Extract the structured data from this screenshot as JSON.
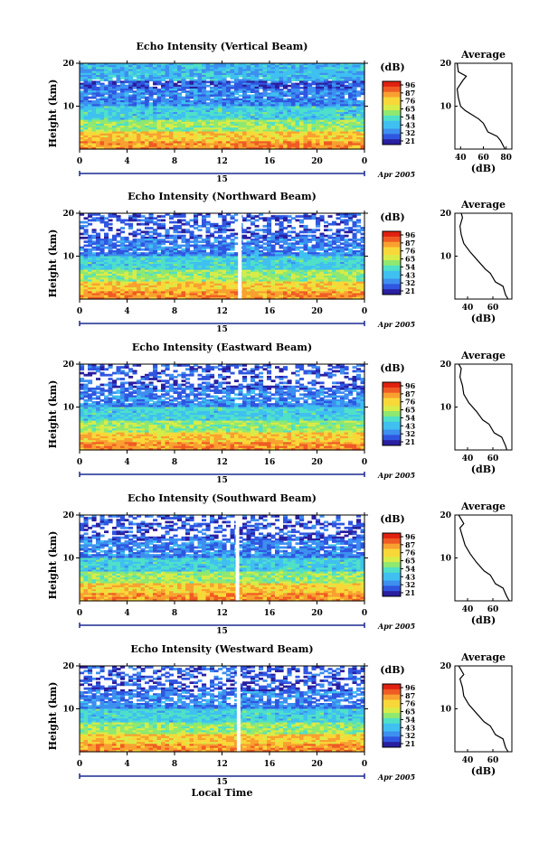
{
  "chart_data": [
    {
      "type": "heatmap",
      "title": "Echo Intensity (Vertical Beam)",
      "ylabel": "Height (km)",
      "xlim": [
        0,
        24
      ],
      "ylim": [
        0,
        20
      ],
      "x_ticks": [
        "0",
        "4",
        "8",
        "12",
        "16",
        "20",
        "0"
      ],
      "y_ticks": [
        "20",
        "10"
      ],
      "date_tick": "15",
      "date_label": "Apr 2005",
      "colorbar": {
        "unit": "(dB)",
        "levels": [
          "96",
          "87",
          "76",
          "65",
          "54",
          "43",
          "32",
          "21"
        ]
      },
      "profile": {
        "title": "Average",
        "xlabel": "(dB)",
        "x_ticks": [
          "40",
          "60",
          "80"
        ],
        "xlim": [
          35,
          85
        ],
        "y_ticks": [
          "20",
          "10"
        ],
        "points": [
          [
            79,
            0
          ],
          [
            75,
            2
          ],
          [
            72,
            3
          ],
          [
            64,
            4
          ],
          [
            60,
            6
          ],
          [
            56,
            7
          ],
          [
            50,
            8
          ],
          [
            44,
            9
          ],
          [
            40,
            10
          ],
          [
            38,
            12
          ],
          [
            37,
            14
          ],
          [
            42,
            16
          ],
          [
            45,
            17
          ],
          [
            38,
            18
          ],
          [
            37,
            20
          ]
        ]
      },
      "gaps": []
    },
    {
      "type": "heatmap",
      "title": "Echo Intensity (Northward Beam)",
      "ylabel": "Height (km)",
      "xlim": [
        0,
        24
      ],
      "ylim": [
        0,
        20
      ],
      "x_ticks": [
        "0",
        "4",
        "8",
        "12",
        "16",
        "20",
        "0"
      ],
      "y_ticks": [
        "20",
        "10"
      ],
      "date_tick": "15",
      "date_label": "Apr 2005",
      "colorbar": {
        "unit": "(dB)",
        "levels": [
          "96",
          "87",
          "76",
          "65",
          "54",
          "43",
          "32",
          "21"
        ]
      },
      "profile": {
        "title": "Average",
        "xlabel": "(dB)",
        "x_ticks": [
          "40",
          "60"
        ],
        "xlim": [
          30,
          75
        ],
        "y_ticks": [
          "20",
          "10"
        ],
        "points": [
          [
            72,
            0
          ],
          [
            70,
            1
          ],
          [
            68,
            3
          ],
          [
            62,
            4
          ],
          [
            58,
            6
          ],
          [
            54,
            7
          ],
          [
            48,
            9
          ],
          [
            42,
            11
          ],
          [
            37,
            13
          ],
          [
            35,
            15
          ],
          [
            34,
            17
          ],
          [
            36,
            19
          ],
          [
            35,
            20
          ]
        ]
      },
      "gaps": [
        13.5
      ]
    },
    {
      "type": "heatmap",
      "title": "Echo Intensity (Eastward Beam)",
      "ylabel": "Height (km)",
      "xlim": [
        0,
        24
      ],
      "ylim": [
        0,
        20
      ],
      "x_ticks": [
        "0",
        "4",
        "8",
        "12",
        "16",
        "20",
        "0"
      ],
      "y_ticks": [
        "20",
        "10"
      ],
      "date_tick": "15",
      "date_label": "Apr 2005",
      "colorbar": {
        "unit": "(dB)",
        "levels": [
          "96",
          "87",
          "76",
          "65",
          "54",
          "43",
          "32",
          "21"
        ]
      },
      "profile": {
        "title": "Average",
        "xlabel": "(dB)",
        "x_ticks": [
          "40",
          "60"
        ],
        "xlim": [
          30,
          75
        ],
        "y_ticks": [
          "20",
          "10"
        ],
        "points": [
          [
            71,
            0
          ],
          [
            70,
            1
          ],
          [
            67,
            3
          ],
          [
            61,
            4
          ],
          [
            57,
            6
          ],
          [
            52,
            7
          ],
          [
            47,
            9
          ],
          [
            41,
            11
          ],
          [
            37,
            13
          ],
          [
            36,
            15
          ],
          [
            34,
            17
          ],
          [
            35,
            19
          ],
          [
            33,
            20
          ]
        ]
      },
      "gaps": []
    },
    {
      "type": "heatmap",
      "title": "Echo Intensity (Southward Beam)",
      "ylabel": "Height (km)",
      "xlim": [
        0,
        24
      ],
      "ylim": [
        0,
        20
      ],
      "x_ticks": [
        "0",
        "4",
        "8",
        "12",
        "16",
        "20",
        "0"
      ],
      "y_ticks": [
        "20",
        "10"
      ],
      "date_tick": "15",
      "date_label": "Apr 2005",
      "colorbar": {
        "unit": "(dB)",
        "levels": [
          "96",
          "87",
          "76",
          "65",
          "54",
          "43",
          "32",
          "21"
        ]
      },
      "profile": {
        "title": "Average",
        "xlabel": "(dB)",
        "x_ticks": [
          "40",
          "60"
        ],
        "xlim": [
          30,
          75
        ],
        "y_ticks": [
          "20",
          "10"
        ],
        "points": [
          [
            73,
            0
          ],
          [
            71,
            1
          ],
          [
            68,
            3
          ],
          [
            62,
            4
          ],
          [
            58,
            6
          ],
          [
            53,
            7
          ],
          [
            47,
            9
          ],
          [
            42,
            11
          ],
          [
            38,
            13
          ],
          [
            36,
            15
          ],
          [
            34,
            17
          ],
          [
            37,
            18
          ],
          [
            33,
            20
          ]
        ]
      },
      "gaps": [
        13.3
      ]
    },
    {
      "type": "heatmap",
      "title": "Echo Intensity (Westward Beam)",
      "ylabel": "Height (km)",
      "xlim": [
        0,
        24
      ],
      "ylim": [
        0,
        20
      ],
      "x_ticks": [
        "0",
        "4",
        "8",
        "12",
        "16",
        "20",
        "0"
      ],
      "y_ticks": [
        "20",
        "10"
      ],
      "date_tick": "15",
      "date_label": "Apr 2005",
      "xlabel": "Local Time",
      "colorbar": {
        "unit": "(dB)",
        "levels": [
          "96",
          "87",
          "76",
          "65",
          "54",
          "43",
          "32",
          "21"
        ]
      },
      "profile": {
        "title": "Average",
        "xlabel": "(dB)",
        "x_ticks": [
          "40",
          "60"
        ],
        "xlim": [
          30,
          75
        ],
        "y_ticks": [
          "20",
          "10"
        ],
        "points": [
          [
            72,
            0
          ],
          [
            70,
            1
          ],
          [
            68,
            3
          ],
          [
            62,
            4
          ],
          [
            58,
            6
          ],
          [
            53,
            7
          ],
          [
            47,
            9
          ],
          [
            41,
            11
          ],
          [
            37,
            13
          ],
          [
            36,
            15
          ],
          [
            34,
            17
          ],
          [
            37,
            18
          ],
          [
            33,
            20
          ]
        ]
      },
      "gaps": [
        13.4
      ]
    }
  ]
}
